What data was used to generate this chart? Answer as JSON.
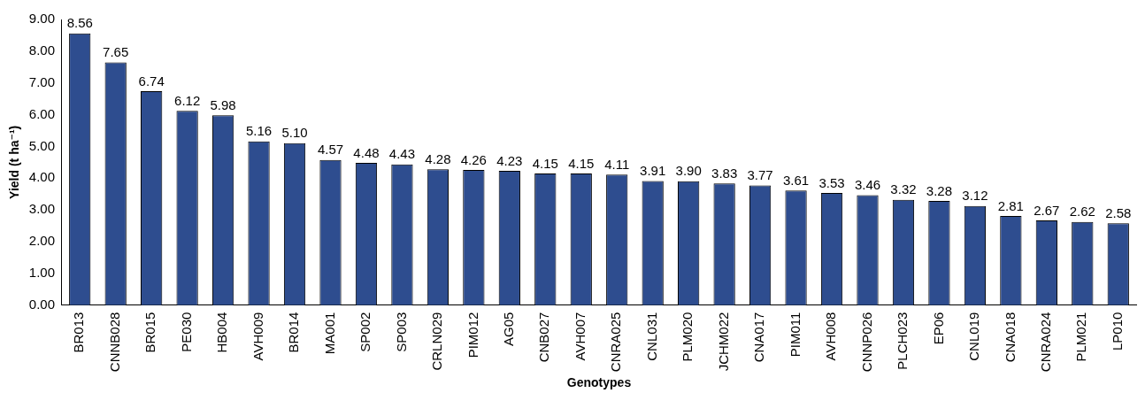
{
  "chart_data": {
    "type": "bar",
    "xlabel": "Genotypes",
    "ylabel": "Yield (t ha⁻¹)",
    "categories": [
      "BR013",
      "CNNB028",
      "BR015",
      "PE030",
      "HB004",
      "AVH009",
      "BR014",
      "MA001",
      "SP002",
      "SP003",
      "CRLN029",
      "PIM012",
      "AG05",
      "CNB027",
      "AVH007",
      "CNRA025",
      "CNL031",
      "PLM020",
      "JCHM022",
      "CNA017",
      "PIM011",
      "AVH008",
      "CNNP026",
      "PLCH023",
      "EP06",
      "CNL019",
      "CNA018",
      "CNRA024",
      "PLM021",
      "LP010"
    ],
    "values": [
      8.56,
      7.65,
      6.74,
      6.12,
      5.98,
      5.16,
      5.1,
      4.57,
      4.48,
      4.43,
      4.28,
      4.26,
      4.23,
      4.15,
      4.15,
      4.11,
      3.91,
      3.9,
      3.83,
      3.77,
      3.61,
      3.53,
      3.46,
      3.32,
      3.28,
      3.12,
      2.81,
      2.67,
      2.62,
      2.58
    ],
    "value_labels": [
      "8.56",
      "7.65",
      "6.74",
      "6.12",
      "5.98",
      "5.16",
      "5.10",
      "4.57",
      "4.48",
      "4.43",
      "4.28",
      "4.26",
      "4.23",
      "4.15",
      "4.15",
      "4.11",
      "3.91",
      "3.90",
      "3.83",
      "3.77",
      "3.61",
      "3.53",
      "3.46",
      "3.32",
      "3.28",
      "3.12",
      "2.81",
      "2.67",
      "2.62",
      "2.58"
    ],
    "color": "#2e4d8f",
    "ylim": [
      0,
      9
    ],
    "yticks": [
      {
        "value": 0,
        "label": "0.00"
      },
      {
        "value": 1,
        "label": "1.00"
      },
      {
        "value": 2,
        "label": "2.00"
      },
      {
        "value": 3,
        "label": "3.00"
      },
      {
        "value": 4,
        "label": "4.00"
      },
      {
        "value": 5,
        "label": "5.00"
      },
      {
        "value": 6,
        "label": "6.00"
      },
      {
        "value": 7,
        "label": "7.00"
      },
      {
        "value": 8,
        "label": "8.00"
      },
      {
        "value": 9,
        "label": "9.00"
      }
    ],
    "grid": false,
    "legend": false
  }
}
